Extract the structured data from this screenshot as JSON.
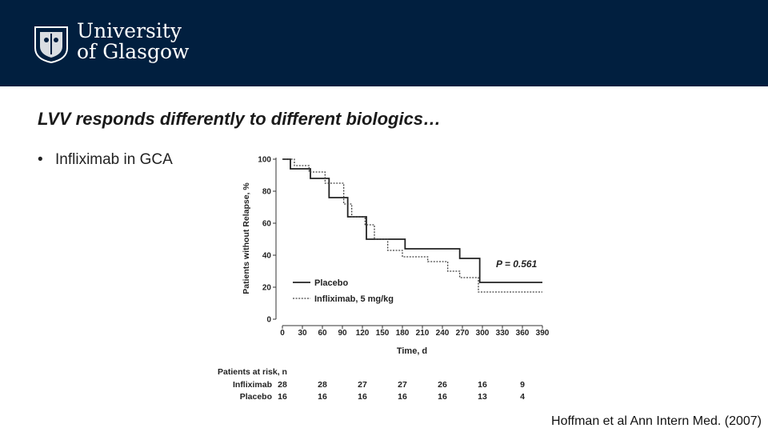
{
  "header": {
    "logo_line1": "University",
    "logo_line2": "of Glasgow",
    "background_color": "#011f3f"
  },
  "slide": {
    "title": "LVV responds differently to different biologics…",
    "bullet": "Infliximab in GCA",
    "citation": "Hoffman et al Ann Intern Med. (2007)"
  },
  "chart_data": {
    "type": "line",
    "xlabel": "Time, d",
    "ylabel": "Patients without Relapse, %",
    "xlim": [
      0,
      390
    ],
    "ylim": [
      0,
      100
    ],
    "xticks": [
      0,
      30,
      60,
      90,
      120,
      150,
      180,
      210,
      240,
      270,
      300,
      330,
      360,
      390
    ],
    "yticks": [
      0,
      20,
      40,
      60,
      80,
      100
    ],
    "annotation": "P = 0.561",
    "legend_position": "bottom-left",
    "series": [
      {
        "name": "Placebo",
        "style": "solid",
        "color": "#222222",
        "steps": [
          [
            0,
            100
          ],
          [
            12,
            94
          ],
          [
            42,
            88
          ],
          [
            70,
            76
          ],
          [
            98,
            64
          ],
          [
            126,
            50
          ],
          [
            154,
            50
          ],
          [
            184,
            44
          ],
          [
            266,
            38
          ],
          [
            296,
            23
          ],
          [
            390,
            23
          ]
        ]
      },
      {
        "name": "Infliximab, 5 mg/kg",
        "style": "dotted",
        "color": "#444444",
        "steps": [
          [
            0,
            100
          ],
          [
            18,
            96
          ],
          [
            40,
            92
          ],
          [
            64,
            85
          ],
          [
            92,
            72
          ],
          [
            104,
            64
          ],
          [
            124,
            59
          ],
          [
            138,
            50
          ],
          [
            158,
            43
          ],
          [
            180,
            39
          ],
          [
            218,
            36
          ],
          [
            248,
            30
          ],
          [
            266,
            26
          ],
          [
            294,
            17
          ],
          [
            390,
            17
          ]
        ]
      }
    ],
    "risk_table": {
      "title": "Patients at risk, n",
      "x_positions": [
        0,
        60,
        120,
        180,
        240,
        300,
        360
      ],
      "rows": [
        {
          "label": "Infliximab",
          "values": [
            "28",
            "28",
            "27",
            "27",
            "26",
            "16",
            "9"
          ]
        },
        {
          "label": "Placebo",
          "values": [
            "16",
            "16",
            "16",
            "16",
            "16",
            "13",
            "4"
          ]
        }
      ]
    }
  }
}
